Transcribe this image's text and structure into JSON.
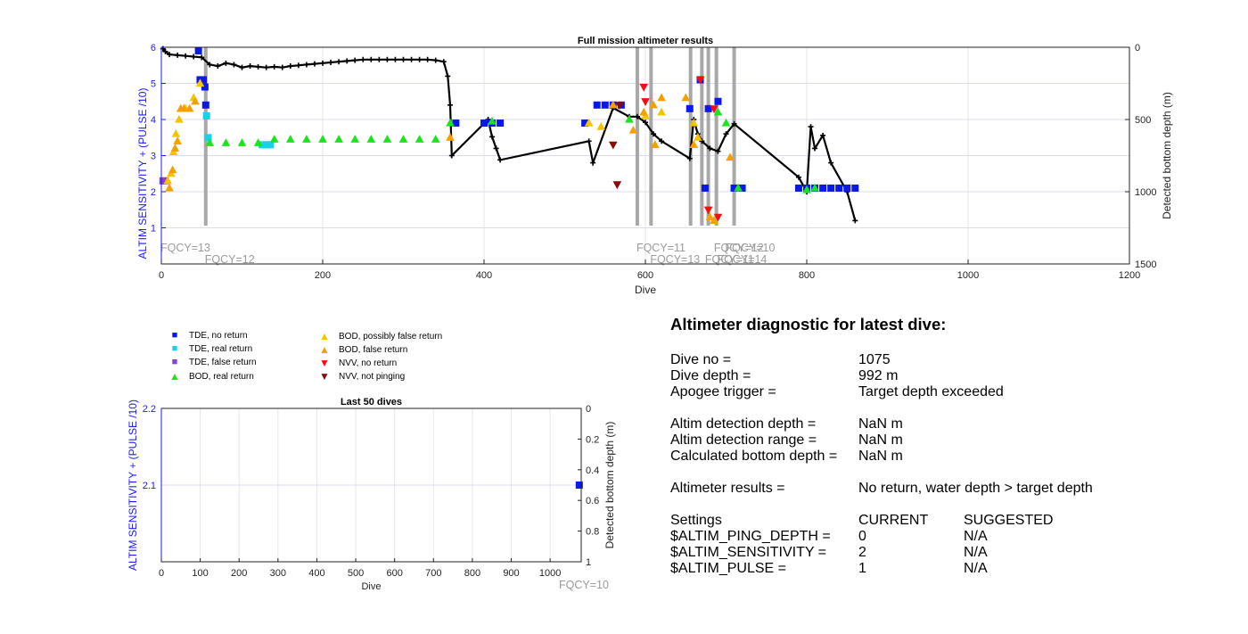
{
  "main_chart": {
    "chart_data": {
      "type": "scatter",
      "title": "Full mission altimeter results",
      "xlabel": "Dive",
      "ylabel_left": "ALTIM SENSITIVITY + (PULSE /10)",
      "ylabel_right": "Detected bottom depth (m)",
      "xlim": [
        0,
        1200
      ],
      "ylim_left": [
        0,
        6
      ],
      "ylim_right": [
        0,
        1500
      ],
      "x_ticks": [
        "0",
        "200",
        "400",
        "600",
        "800",
        "1000",
        "1200"
      ],
      "y_ticks_left": [
        "1",
        "2",
        "3",
        "4",
        "5",
        "6"
      ],
      "y_ticks_right": [
        "0",
        "500",
        "1000",
        "1500"
      ],
      "grid": true,
      "fqcy_lines": [
        55,
        590,
        607,
        656,
        670,
        678,
        688,
        710
      ],
      "fqcy_labels": [
        {
          "text": "FQCY=13",
          "x": 0,
          "row": 1
        },
        {
          "text": "FQCY=12",
          "x": 55,
          "row": 2
        },
        {
          "text": "FQCY=11",
          "x": 590,
          "row": 1
        },
        {
          "text": "FQCY=13",
          "x": 607,
          "row": 2
        },
        {
          "text": "FQCY=12",
          "x": 686,
          "row": 1
        },
        {
          "text": "FQCY=10",
          "x": 700,
          "row": 1
        },
        {
          "text": "FQCY=11",
          "x": 675,
          "row": 2
        },
        {
          "text": "FQCY=14",
          "x": 690,
          "row": 2
        }
      ],
      "series": [
        {
          "name": "TDE, no return",
          "marker": "square",
          "color": "#0a19e8",
          "points": [
            [
              46,
              5.9
            ],
            [
              48,
              5.1
            ],
            [
              52,
              5.1
            ],
            [
              54,
              4.9
            ],
            [
              55,
              4.4
            ],
            [
              365,
              3.9
            ],
            [
              400,
              3.9
            ],
            [
              410,
              3.9
            ],
            [
              420,
              3.9
            ],
            [
              525,
              3.9
            ],
            [
              540,
              4.4
            ],
            [
              550,
              4.4
            ],
            [
              560,
              4.4
            ],
            [
              570,
              4.4
            ],
            [
              655,
              4.3
            ],
            [
              668,
              5.1
            ],
            [
              678,
              4.3
            ],
            [
              690,
              4.5
            ],
            [
              710,
              2.1
            ],
            [
              720,
              2.1
            ],
            [
              790,
              2.1
            ],
            [
              800,
              2.1
            ],
            [
              810,
              2.1
            ],
            [
              820,
              2.1
            ],
            [
              830,
              2.1
            ],
            [
              840,
              2.1
            ],
            [
              850,
              2.1
            ],
            [
              860,
              2.1
            ],
            [
              674,
              2.1
            ]
          ]
        },
        {
          "name": "TDE, real return",
          "marker": "square",
          "color": "#19d2e6",
          "points": [
            [
              56,
              4.1
            ],
            [
              58,
              3.5
            ],
            [
              135,
              3.3
            ],
            [
              130,
              3.3
            ],
            [
              125,
              3.3
            ]
          ]
        },
        {
          "name": "TDE, false return",
          "marker": "square",
          "color": "#8a3fd6",
          "points": [
            [
              2,
              2.3
            ],
            [
              5,
              2.3
            ]
          ]
        },
        {
          "name": "BOD, real return",
          "marker": "triangle-up",
          "color": "#18e61a",
          "points": [
            [
              60,
              3.35
            ],
            [
              80,
              3.35
            ],
            [
              100,
              3.35
            ],
            [
              120,
              3.35
            ],
            [
              140,
              3.45
            ],
            [
              160,
              3.45
            ],
            [
              180,
              3.45
            ],
            [
              200,
              3.45
            ],
            [
              220,
              3.45
            ],
            [
              240,
              3.45
            ],
            [
              260,
              3.45
            ],
            [
              280,
              3.45
            ],
            [
              300,
              3.45
            ],
            [
              320,
              3.45
            ],
            [
              340,
              3.45
            ],
            [
              358,
              3.9
            ],
            [
              410,
              3.95
            ],
            [
              580,
              4.0
            ],
            [
              690,
              4.2
            ],
            [
              700,
              3.9
            ],
            [
              800,
              2.05
            ],
            [
              810,
              2.1
            ],
            [
              715,
              2.1
            ]
          ]
        },
        {
          "name": "BOD, possibly false return",
          "marker": "triangle-up",
          "color": "#f5c400",
          "points": [
            [
              8,
              2.3
            ],
            [
              12,
              2.5
            ],
            [
              15,
              3.1
            ],
            [
              18,
              3.6
            ],
            [
              22,
              4.0
            ],
            [
              30,
              4.3
            ],
            [
              40,
              4.6
            ],
            [
              48,
              5.0
            ],
            [
              530,
              3.9
            ],
            [
              545,
              3.8
            ],
            [
              600,
              4.1
            ],
            [
              620,
              4.2
            ],
            [
              660,
              3.9
            ],
            [
              665,
              3.5
            ]
          ]
        },
        {
          "name": "BOD, false return",
          "marker": "triangle-up",
          "color": "#f5a000",
          "points": [
            [
              10,
              2.1
            ],
            [
              14,
              2.6
            ],
            [
              17,
              3.2
            ],
            [
              20,
              3.4
            ],
            [
              24,
              4.3
            ],
            [
              28,
              4.3
            ],
            [
              35,
              4.3
            ],
            [
              42,
              4.5
            ],
            [
              358,
              3.5
            ],
            [
              560,
              4.4
            ],
            [
              585,
              3.7
            ],
            [
              598,
              4.2
            ],
            [
              610,
              4.4
            ],
            [
              612,
              3.3
            ],
            [
              620,
              4.6
            ],
            [
              650,
              4.6
            ],
            [
              660,
              3.3
            ],
            [
              705,
              2.95
            ],
            [
              680,
              1.3
            ],
            [
              685,
              1.2
            ]
          ]
        },
        {
          "name": "NVV, no return",
          "marker": "triangle-down",
          "color": "#f01010",
          "points": [
            [
              598,
              4.9
            ],
            [
              600,
              4.5
            ],
            [
              668,
              5.1
            ],
            [
              685,
              4.3
            ],
            [
              678,
              1.5
            ],
            [
              690,
              1.3
            ]
          ]
        },
        {
          "name": "NVV, not pinging",
          "marker": "triangle-down",
          "color": "#8c0a0a",
          "points": [
            [
              560,
              3.3
            ],
            [
              565,
              2.2
            ],
            [
              568,
              4.4
            ]
          ]
        }
      ],
      "depth_points": {
        "name": "Detected bottom depth",
        "color": "#000000",
        "points": [
          [
            2,
            10
          ],
          [
            5,
            30
          ],
          [
            10,
            50
          ],
          [
            20,
            55
          ],
          [
            30,
            60
          ],
          [
            40,
            65
          ],
          [
            50,
            70
          ],
          [
            60,
            120
          ],
          [
            70,
            130
          ],
          [
            80,
            110
          ],
          [
            90,
            120
          ],
          [
            100,
            140
          ],
          [
            110,
            130
          ],
          [
            120,
            135
          ],
          [
            130,
            140
          ],
          [
            140,
            135
          ],
          [
            150,
            140
          ],
          [
            160,
            130
          ],
          [
            170,
            125
          ],
          [
            180,
            120
          ],
          [
            190,
            115
          ],
          [
            200,
            110
          ],
          [
            210,
            105
          ],
          [
            220,
            100
          ],
          [
            230,
            95
          ],
          [
            240,
            90
          ],
          [
            250,
            85
          ],
          [
            260,
            85
          ],
          [
            270,
            85
          ],
          [
            280,
            85
          ],
          [
            290,
            85
          ],
          [
            300,
            85
          ],
          [
            310,
            85
          ],
          [
            320,
            85
          ],
          [
            330,
            85
          ],
          [
            340,
            90
          ],
          [
            350,
            100
          ],
          [
            355,
            200
          ],
          [
            358,
            400
          ],
          [
            360,
            750
          ],
          [
            405,
            500
          ],
          [
            410,
            620
          ],
          [
            415,
            700
          ],
          [
            420,
            780
          ],
          [
            530,
            650
          ],
          [
            535,
            800
          ],
          [
            560,
            420
          ],
          [
            580,
            480
          ],
          [
            590,
            480
          ],
          [
            600,
            520
          ],
          [
            610,
            600
          ],
          [
            620,
            650
          ],
          [
            655,
            770
          ],
          [
            660,
            500
          ],
          [
            665,
            600
          ],
          [
            670,
            650
          ],
          [
            680,
            700
          ],
          [
            690,
            720
          ],
          [
            700,
            600
          ],
          [
            710,
            530
          ],
          [
            790,
            900
          ],
          [
            800,
            1000
          ],
          [
            805,
            550
          ],
          [
            810,
            700
          ],
          [
            820,
            610
          ],
          [
            830,
            800
          ],
          [
            850,
            1000
          ],
          [
            860,
            1200
          ]
        ]
      }
    }
  },
  "legend": {
    "items": [
      {
        "label": "TDE, no return",
        "marker": "square",
        "color": "#0a19e8"
      },
      {
        "label": "TDE, real return",
        "marker": "square",
        "color": "#19d2e6"
      },
      {
        "label": "TDE, false return",
        "marker": "square",
        "color": "#8a3fd6"
      },
      {
        "label": "BOD, real return",
        "marker": "triangle-up",
        "color": "#18e61a"
      },
      {
        "label": "BOD, possibly false return",
        "marker": "triangle-up",
        "color": "#f5c400"
      },
      {
        "label": "BOD, false return",
        "marker": "triangle-up",
        "color": "#f5a000"
      },
      {
        "label": "NVV, no return",
        "marker": "triangle-down",
        "color": "#f01010"
      },
      {
        "label": "NVV, not pinging",
        "marker": "triangle-down",
        "color": "#8c0a0a"
      }
    ]
  },
  "recent_chart": {
    "chart_data": {
      "type": "scatter",
      "title": "Last 50 dives",
      "xlabel": "Dive",
      "ylabel_left": "ALTIM SENSITIVITY + (PULSE /10)",
      "ylabel_right": "Detected bottom depth (m)",
      "xlim": [
        0,
        1080
      ],
      "ylim_left": [
        2.0,
        2.2
      ],
      "ylim_right": [
        0,
        1
      ],
      "x_ticks": [
        "0",
        "100",
        "200",
        "300",
        "400",
        "500",
        "600",
        "700",
        "800",
        "900",
        "1000"
      ],
      "y_ticks_left": [
        "2.1",
        "2.2"
      ],
      "y_ticks_right": [
        "0",
        "0.2",
        "0.4",
        "0.6",
        "0.8",
        "1"
      ],
      "fqcy_label": "FQCY=10",
      "series": [
        {
          "name": "TDE, no return",
          "marker": "square",
          "color": "#0a19e8",
          "points": [
            [
              1075,
              2.1
            ]
          ]
        }
      ]
    }
  },
  "diagnostic": {
    "title": "Altimeter diagnostic for latest dive:",
    "dive_no_label": "Dive no =",
    "dive_no_value": "1075",
    "dive_depth_label": "Dive depth =",
    "dive_depth_value": "992 m",
    "apogee_label": "Apogee trigger =",
    "apogee_value": "Target depth exceeded",
    "altim_det_depth_label": "Altim detection depth =",
    "altim_det_depth_value": "NaN m",
    "altim_det_range_label": "Altim detection range =",
    "altim_det_range_value": "NaN m",
    "calc_bottom_label": "Calculated bottom depth =",
    "calc_bottom_value": "NaN m",
    "results_label": "Altimeter results =",
    "results_value": "No return, water depth > target depth",
    "settings_label": "Settings",
    "current_label": "CURRENT",
    "suggested_label": "SUGGESTED",
    "settings": [
      {
        "name": "$ALTIM_PING_DEPTH =",
        "current": "0",
        "suggested": "N/A"
      },
      {
        "name": "$ALTIM_SENSITIVITY =",
        "current": "2",
        "suggested": "N/A"
      },
      {
        "name": "$ALTIM_PULSE =",
        "current": "1",
        "suggested": "N/A"
      }
    ]
  }
}
